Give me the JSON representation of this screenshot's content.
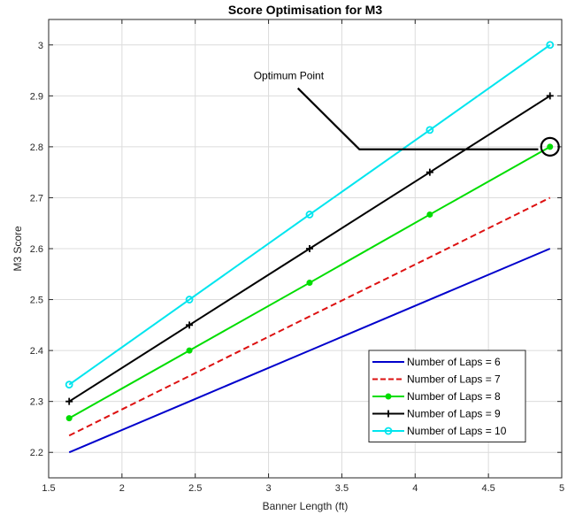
{
  "chart_data": {
    "type": "line",
    "title": "Score Optimisation for M3",
    "xlabel": "Banner Length (ft)",
    "ylabel": "M3 Score",
    "xlim": [
      1.5,
      5
    ],
    "ylim": [
      2.15,
      3.05
    ],
    "xticks": [
      1.5,
      2,
      2.5,
      3,
      3.5,
      4,
      4.5,
      5
    ],
    "xtick_labels": [
      "1.5",
      "2",
      "2.5",
      "3",
      "3.5",
      "4",
      "4.5",
      "5"
    ],
    "yticks": [
      2.2,
      2.3,
      2.4,
      2.5,
      2.6,
      2.7,
      2.8,
      2.9,
      3
    ],
    "ytick_labels": [
      "2.2",
      "2.3",
      "2.4",
      "2.5",
      "2.6",
      "2.7",
      "2.8",
      "2.9",
      "3"
    ],
    "grid": true,
    "legend_position": "bottom-right",
    "x": [
      1.64,
      2.46,
      3.28,
      4.1,
      4.92
    ],
    "series": [
      {
        "name": "Number of Laps = 6",
        "color": "#0000cc",
        "dash": "solid",
        "marker": "none",
        "values": [
          2.2,
          2.3,
          2.4,
          2.5,
          2.6
        ]
      },
      {
        "name": "Number of Laps = 7",
        "color": "#dd1111",
        "dash": "dashed",
        "marker": "none",
        "values": [
          2.233,
          2.35,
          2.467,
          2.583,
          2.7
        ]
      },
      {
        "name": "Number of Laps = 8",
        "color": "#00dd00",
        "dash": "solid",
        "marker": "dot",
        "values": [
          2.267,
          2.4,
          2.533,
          2.667,
          2.8
        ]
      },
      {
        "name": "Number of Laps = 9",
        "color": "#000000",
        "dash": "solid",
        "marker": "plus",
        "values": [
          2.3,
          2.45,
          2.6,
          2.75,
          2.9
        ]
      },
      {
        "name": "Number of Laps = 10",
        "color": "#00e5ee",
        "dash": "solid",
        "marker": "circle",
        "values": [
          2.333,
          2.5,
          2.667,
          2.833,
          3.0
        ]
      }
    ],
    "annotation": {
      "text": "Optimum Point",
      "point": {
        "x": 4.92,
        "y": 2.8
      },
      "path": [
        {
          "x": 3.2,
          "y": 2.915
        },
        {
          "x": 3.62,
          "y": 2.795
        },
        {
          "x": 4.84,
          "y": 2.795
        }
      ]
    }
  }
}
